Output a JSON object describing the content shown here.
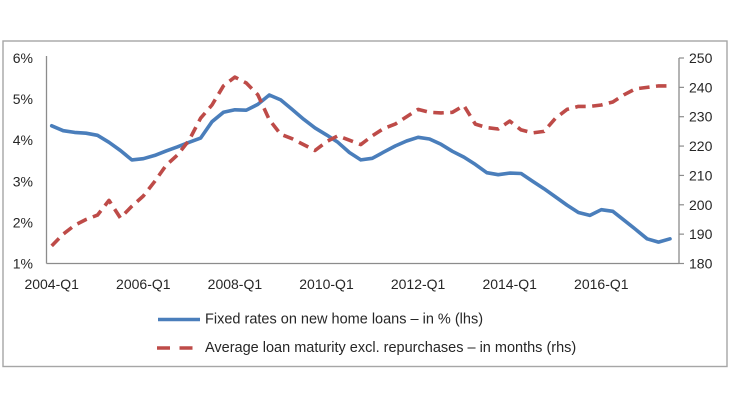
{
  "figure": {
    "background": "#ffffff",
    "frame_color": "#a6a6a6",
    "axis_color": "#8c8c8c",
    "text_color": "#262626"
  },
  "chart_data": {
    "type": "line",
    "title": "",
    "legend_position": "bottom",
    "grid": false,
    "categories": [
      "2004-Q1",
      "2004-Q2",
      "2004-Q3",
      "2004-Q4",
      "2005-Q1",
      "2005-Q2",
      "2005-Q3",
      "2005-Q4",
      "2006-Q1",
      "2006-Q2",
      "2006-Q3",
      "2006-Q4",
      "2007-Q1",
      "2007-Q2",
      "2007-Q3",
      "2007-Q4",
      "2008-Q1",
      "2008-Q2",
      "2008-Q3",
      "2008-Q4",
      "2009-Q1",
      "2009-Q2",
      "2009-Q3",
      "2009-Q4",
      "2010-Q1",
      "2010-Q2",
      "2010-Q3",
      "2010-Q4",
      "2011-Q1",
      "2011-Q2",
      "2011-Q3",
      "2011-Q4",
      "2012-Q1",
      "2012-Q2",
      "2012-Q3",
      "2012-Q4",
      "2013-Q1",
      "2013-Q2",
      "2013-Q3",
      "2013-Q4",
      "2014-Q1",
      "2014-Q2",
      "2014-Q3",
      "2014-Q4",
      "2015-Q1",
      "2015-Q2",
      "2015-Q3",
      "2015-Q4",
      "2016-Q1",
      "2016-Q2",
      "2016-Q3",
      "2016-Q4",
      "2017-Q1",
      "2017-Q2",
      "2017-Q3"
    ],
    "series": [
      {
        "name": "Fixed rates on new home loans – in % (lhs)",
        "axis": "left",
        "style": "solid",
        "color": "#4a7ebb",
        "values": [
          4.35,
          4.23,
          4.19,
          4.17,
          4.12,
          3.95,
          3.75,
          3.52,
          3.55,
          3.63,
          3.74,
          3.84,
          3.95,
          4.05,
          4.45,
          4.68,
          4.74,
          4.73,
          4.87,
          5.1,
          4.98,
          4.75,
          4.51,
          4.3,
          4.13,
          3.95,
          3.7,
          3.52,
          3.56,
          3.71,
          3.86,
          3.98,
          4.07,
          4.03,
          3.9,
          3.73,
          3.59,
          3.41,
          3.21,
          3.16,
          3.2,
          3.19,
          3.0,
          2.82,
          2.62,
          2.42,
          2.24,
          2.17,
          2.31,
          2.27,
          2.05,
          1.83,
          1.6,
          1.52,
          1.6
        ]
      },
      {
        "name": "Average loan maturity excl. repurchases – in months (rhs)",
        "axis": "right",
        "style": "dashed",
        "color": "#be4b48",
        "values": [
          186,
          190,
          193,
          195,
          196.5,
          201.5,
          195.5,
          199.5,
          203,
          208,
          213.5,
          217,
          222,
          229.5,
          234,
          240.5,
          243.5,
          241.5,
          237.5,
          229,
          224,
          222.5,
          220.5,
          218.5,
          221.5,
          223.5,
          222,
          220.5,
          223.5,
          226,
          227.5,
          230,
          232.5,
          231.5,
          231.3,
          231.5,
          233.8,
          227.5,
          226.3,
          225.8,
          228.5,
          225.5,
          224.5,
          225,
          229.5,
          232.5,
          233.5,
          233.5,
          234,
          235,
          237.5,
          239.5,
          240,
          240.5,
          240.5
        ]
      }
    ],
    "left_axis": {
      "min": 1,
      "max": 6,
      "tick_labels": [
        "6%",
        "5%",
        "4%",
        "3%",
        "2%",
        "1%"
      ],
      "tick_values": [
        6,
        5,
        4,
        3,
        2,
        1
      ],
      "format": "percent"
    },
    "right_axis": {
      "min": 180,
      "max": 250,
      "tick_labels": [
        "250",
        "240",
        "230",
        "220",
        "210",
        "200",
        "190",
        "180"
      ],
      "tick_values": [
        250,
        240,
        230,
        220,
        210,
        200,
        190,
        180
      ],
      "format": "months"
    },
    "x_axis": {
      "tick_labels": [
        "2004-Q1",
        "2006-Q1",
        "2008-Q1",
        "2010-Q1",
        "2012-Q1",
        "2014-Q1",
        "2016-Q1"
      ],
      "tick_indices": [
        0,
        8,
        16,
        24,
        32,
        40,
        48
      ]
    }
  },
  "legend": {
    "items": [
      {
        "label": "Fixed rates on new home loans – in % (lhs)"
      },
      {
        "label": "Average loan maturity excl. repurchases – in months (rhs)"
      }
    ]
  }
}
